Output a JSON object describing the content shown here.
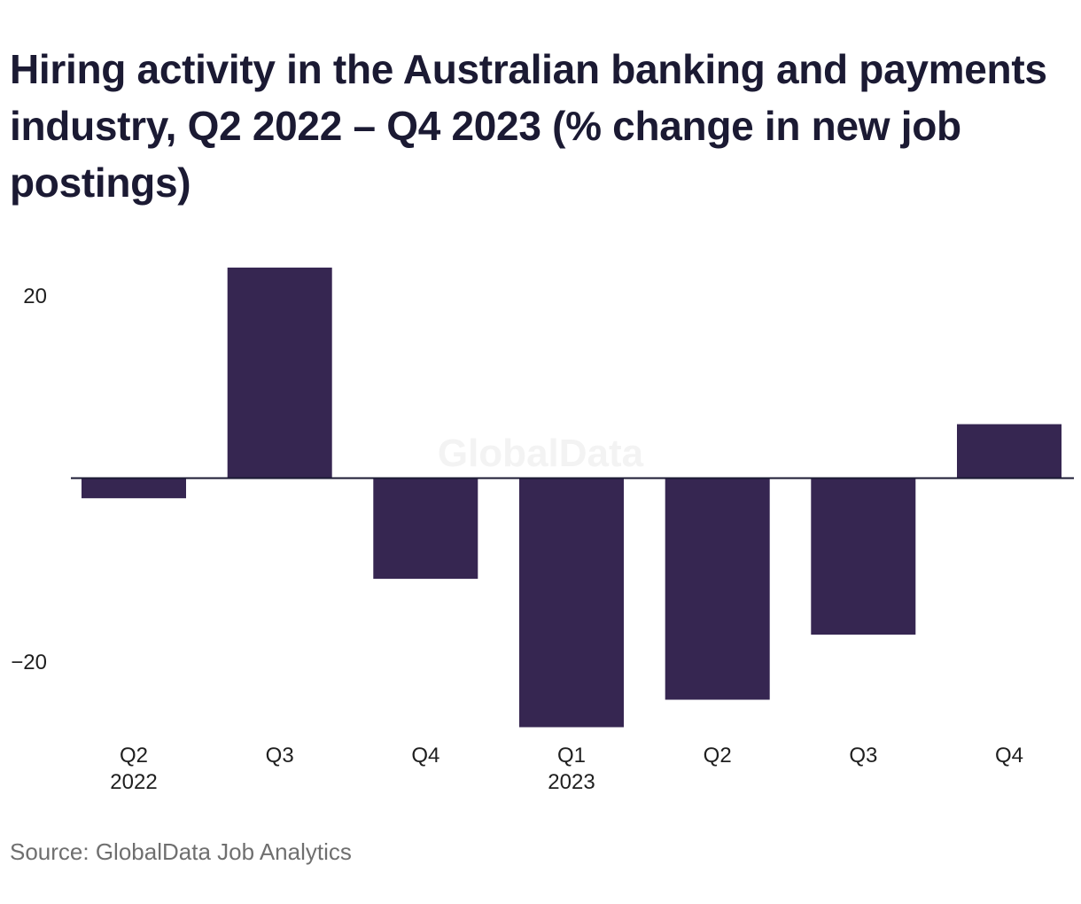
{
  "title": "Hiring activity in the Australian banking and payments industry, Q2 2022 – Q4 2023 (% change in new job postings)",
  "source": "Source: GlobalData Job Analytics",
  "watermark": "GlobalData",
  "colors": {
    "bar": "#362651",
    "axis": "#1b1a33",
    "title": "#1b1a33",
    "source": "#6f6f6f"
  },
  "chart_data": {
    "type": "bar",
    "title": "Hiring activity in the Australian banking and payments industry, Q2 2022 – Q4 2023 (% change in new job postings)",
    "categories": [
      {
        "quarter": "Q2",
        "year": "2022"
      },
      {
        "quarter": "Q3",
        "year": ""
      },
      {
        "quarter": "Q4",
        "year": ""
      },
      {
        "quarter": "Q1",
        "year": "2023"
      },
      {
        "quarter": "Q2",
        "year": ""
      },
      {
        "quarter": "Q3",
        "year": ""
      },
      {
        "quarter": "Q4",
        "year": ""
      }
    ],
    "values": [
      -2.2,
      23,
      -11,
      -27.2,
      -24.2,
      -17.1,
      5.9
    ],
    "yticks": [
      {
        "value": 20,
        "label": "20"
      },
      {
        "value": -20,
        "label": "−20"
      }
    ],
    "ylim": [
      -27.2,
      23
    ],
    "xlabel": "",
    "ylabel": "",
    "grid": false,
    "legend": "none"
  }
}
